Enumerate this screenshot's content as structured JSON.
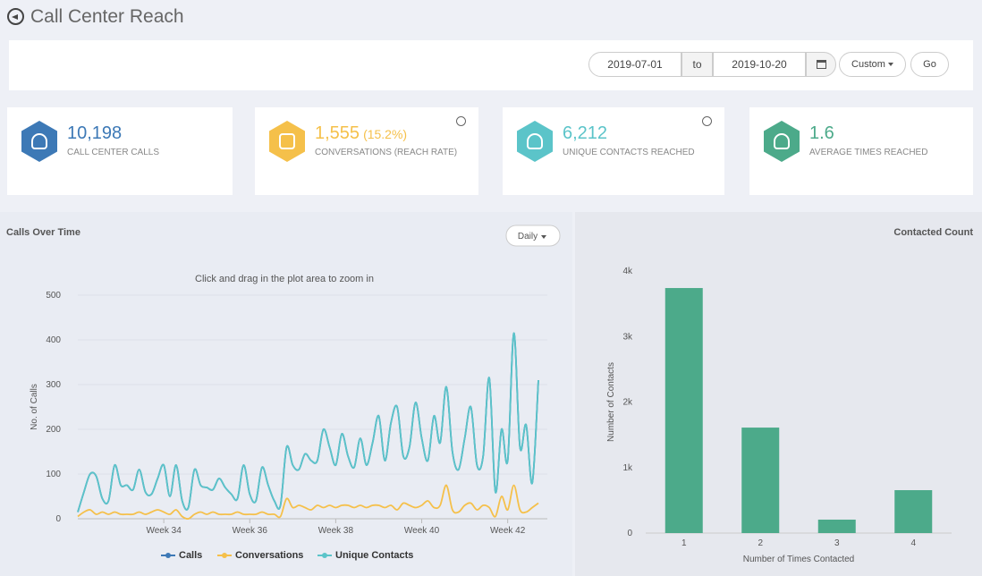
{
  "header": {
    "title": "Call Center Reach"
  },
  "filters": {
    "from": "2019-07-01",
    "to_label": "to",
    "to": "2019-10-20",
    "range": "Custom",
    "go": "Go"
  },
  "kpis": [
    {
      "value": "10,198",
      "label": "CALL CENTER CALLS",
      "color": "#3d79b6"
    },
    {
      "value": "1,555",
      "extra": "(15.2%)",
      "label": "CONVERSATIONS (REACH RATE)",
      "color": "#f5c04a"
    },
    {
      "value": "6,212",
      "label": "UNIQUE CONTACTS REACHED",
      "color": "#5bc4c9"
    },
    {
      "value": "1.6",
      "label": "AVERAGE TIMES REACHED",
      "color": "#4caa8a"
    }
  ],
  "chart_data": [
    {
      "type": "line",
      "title": "Calls Over Time",
      "subtitle": "Click and drag in the plot area to zoom in",
      "control": "Daily",
      "ylabel": "No. of Calls",
      "categories": [
        null,
        null,
        null,
        null,
        null,
        null,
        null,
        null,
        null,
        null,
        null,
        null,
        null,
        null,
        "Week 34",
        null,
        null,
        null,
        null,
        null,
        null,
        null,
        null,
        null,
        null,
        null,
        null,
        null,
        "Week 36",
        null,
        null,
        null,
        null,
        null,
        null,
        null,
        null,
        null,
        null,
        null,
        null,
        null,
        "Week 38",
        null,
        null,
        null,
        null,
        null,
        null,
        null,
        null,
        null,
        null,
        null,
        null,
        null,
        "Week 40",
        null,
        null,
        null,
        null,
        null,
        null,
        null,
        null,
        null,
        null,
        null,
        null,
        null,
        "Week 42",
        null,
        null,
        null,
        null,
        null
      ],
      "ylim": [
        0,
        500
      ],
      "yticks": [
        0,
        100,
        200,
        300,
        400,
        500
      ],
      "grid": true,
      "legend": "bottom",
      "series": [
        {
          "name": "Calls",
          "color": "#3d79b6",
          "values": [
            15,
            60,
            100,
            95,
            45,
            40,
            120,
            75,
            75,
            65,
            110,
            60,
            55,
            90,
            120,
            50,
            120,
            40,
            25,
            110,
            75,
            70,
            65,
            90,
            70,
            55,
            45,
            120,
            55,
            40,
            115,
            75,
            40,
            30,
            160,
            120,
            110,
            145,
            130,
            130,
            200,
            160,
            120,
            190,
            140,
            115,
            180,
            120,
            170,
            230,
            130,
            215,
            250,
            140,
            160,
            260,
            180,
            130,
            230,
            170,
            295,
            150,
            110,
            180,
            250,
            120,
            140,
            315,
            60,
            200,
            130,
            415,
            160,
            210,
            80,
            310
          ]
        },
        {
          "name": "Conversations",
          "color": "#f5c04a",
          "values": [
            5,
            15,
            20,
            10,
            15,
            10,
            15,
            10,
            10,
            10,
            15,
            10,
            15,
            20,
            15,
            10,
            20,
            5,
            0,
            10,
            15,
            10,
            15,
            10,
            10,
            10,
            15,
            10,
            10,
            10,
            15,
            10,
            10,
            5,
            45,
            25,
            30,
            25,
            20,
            30,
            25,
            30,
            25,
            30,
            30,
            25,
            30,
            25,
            30,
            30,
            25,
            30,
            20,
            35,
            30,
            25,
            30,
            40,
            25,
            30,
            75,
            20,
            15,
            30,
            35,
            20,
            30,
            25,
            5,
            50,
            20,
            75,
            20,
            15,
            25,
            35
          ]
        },
        {
          "name": "Unique Contacts",
          "color": "#5bc4c9",
          "values": [
            15,
            60,
            100,
            95,
            45,
            40,
            120,
            75,
            75,
            65,
            110,
            60,
            55,
            90,
            120,
            50,
            120,
            40,
            25,
            110,
            75,
            70,
            65,
            90,
            70,
            55,
            45,
            120,
            55,
            40,
            115,
            75,
            40,
            30,
            160,
            120,
            110,
            145,
            130,
            130,
            200,
            160,
            120,
            190,
            140,
            115,
            180,
            120,
            170,
            230,
            130,
            215,
            250,
            140,
            160,
            260,
            180,
            130,
            230,
            170,
            295,
            150,
            110,
            180,
            250,
            120,
            140,
            315,
            60,
            200,
            130,
            415,
            160,
            210,
            80,
            310
          ]
        }
      ]
    },
    {
      "type": "bar",
      "title": "Contacted Count",
      "xlabel": "Number of Times Contacted",
      "ylabel": "Number of Contacts",
      "categories": [
        "1",
        "2",
        "3",
        "4"
      ],
      "values": [
        3740,
        1610,
        205,
        655
      ],
      "color": "#4caa8a",
      "ylim": [
        0,
        4000
      ],
      "yticks": [
        0,
        {
          "value": 1000,
          "label": "1k"
        },
        {
          "value": 2000,
          "label": "2k"
        },
        {
          "value": 3000,
          "label": "3k"
        },
        {
          "value": 4000,
          "label": "4k"
        }
      ],
      "grid": false
    }
  ]
}
